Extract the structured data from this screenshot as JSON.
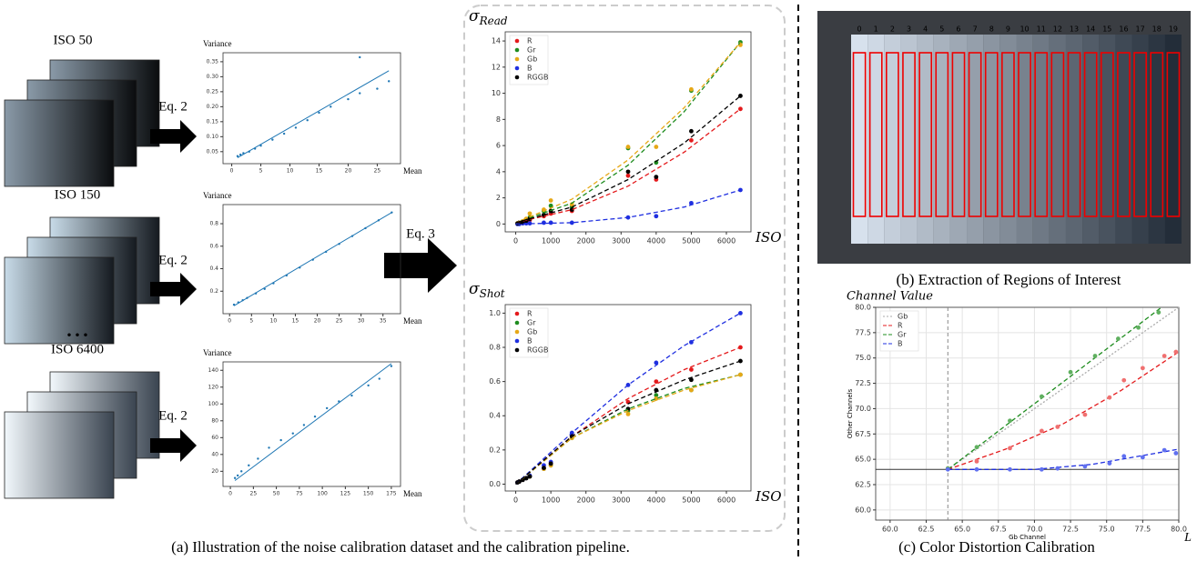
{
  "panel_a": {
    "caption": "(a) Illustration of the noise calibration dataset and the calibration pipeline.",
    "iso_labels": [
      "ISO 50",
      "ISO 150",
      "ISO 6400"
    ],
    "ellipsis": "• • •",
    "eq2": "Eq. 2",
    "eq3": "Eq. 3"
  },
  "panel_b": {
    "caption": "(b) Extraction of Regions of Interest",
    "patch_labels": [
      "0",
      "1",
      "2",
      "3",
      "4",
      "5",
      "6",
      "7",
      "8",
      "9",
      "10",
      "11",
      "12",
      "13",
      "14",
      "15",
      "16",
      "17",
      "18",
      "19"
    ]
  },
  "panel_c": {
    "caption": "(c) Color Distortion Calibration",
    "corner_label": "L"
  },
  "chart_data": [
    {
      "type": "scatter",
      "y_label": "Variance",
      "x_label": "Mean",
      "xlim": [
        -1.5,
        29
      ],
      "ylim": [
        0.01,
        0.38
      ],
      "xticks": [
        0,
        5,
        10,
        15,
        20,
        25
      ],
      "yticks": [
        0.05,
        {
          "value": 0.1,
          "label": "0.10"
        },
        0.15,
        {
          "value": 0.2,
          "label": "0.20"
        },
        0.25,
        {
          "value": 0.3,
          "label": "0.30"
        },
        0.35
      ],
      "series": [
        {
          "mode": "markers",
          "color": "#1f77b4",
          "x": [
            1,
            1.5,
            2,
            3,
            4,
            5,
            7,
            9,
            11,
            13,
            15,
            17,
            20,
            22,
            22,
            25,
            27
          ],
          "values": [
            0.035,
            0.04,
            0.045,
            0.05,
            0.06,
            0.07,
            0.09,
            0.11,
            0.13,
            0.155,
            0.18,
            0.2,
            0.225,
            0.245,
            0.365,
            0.26,
            0.285
          ]
        },
        {
          "mode": "line",
          "color": "#1f77b4",
          "x": [
            1,
            27
          ],
          "values": [
            0.03,
            0.32
          ]
        }
      ]
    },
    {
      "type": "scatter",
      "y_label": "Variance",
      "x_label": "Mean",
      "xlim": [
        -1.5,
        39
      ],
      "ylim": [
        0,
        0.97
      ],
      "xticks": [
        0,
        5,
        10,
        15,
        20,
        25,
        30,
        35
      ],
      "yticks": [
        0.2,
        0.4,
        0.6,
        0.8
      ],
      "series": [
        {
          "mode": "markers",
          "color": "#1f77b4",
          "x": [
            1,
            2,
            3,
            4,
            6,
            8,
            10,
            13,
            16,
            19,
            22,
            25,
            28,
            31,
            34,
            37
          ],
          "values": [
            0.08,
            0.1,
            0.12,
            0.14,
            0.18,
            0.22,
            0.27,
            0.34,
            0.41,
            0.48,
            0.55,
            0.62,
            0.69,
            0.76,
            0.83,
            0.9
          ]
        },
        {
          "mode": "line",
          "color": "#1f77b4",
          "x": [
            1,
            37
          ],
          "values": [
            0.07,
            0.9
          ]
        }
      ]
    },
    {
      "type": "scatter",
      "y_label": "Variance",
      "x_label": "Mean",
      "xlim": [
        -8,
        185
      ],
      "ylim": [
        2,
        150
      ],
      "xticks": [
        0,
        25,
        50,
        75,
        100,
        125,
        150,
        175
      ],
      "yticks": [
        20,
        40,
        60,
        80,
        100,
        120,
        140
      ],
      "series": [
        {
          "mode": "markers",
          "color": "#1f77b4",
          "x": [
            5,
            8,
            12,
            20,
            30,
            42,
            55,
            68,
            80,
            92,
            105,
            118,
            132,
            150,
            162,
            175
          ],
          "values": [
            12,
            15,
            20,
            27,
            35,
            48,
            57,
            65,
            75,
            85,
            95,
            103,
            110,
            122,
            130,
            145
          ]
        },
        {
          "mode": "line",
          "color": "#1f77b4",
          "x": [
            5,
            175
          ],
          "values": [
            9,
            148
          ]
        }
      ]
    },
    {
      "type": "scatter",
      "title": {
        "symbol": "σ",
        "subscript": "Read"
      },
      "x_label": "ISO",
      "legend": "upper left",
      "xlim": [
        -300,
        6700
      ],
      "ylim": [
        -0.6,
        14.7
      ],
      "xticks": [
        0,
        1000,
        2000,
        3000,
        4000,
        5000,
        6000
      ],
      "yticks": [
        0,
        2,
        4,
        6,
        8,
        10,
        12,
        14
      ],
      "series": [
        {
          "name": "R",
          "mode": "markers",
          "color": "#e41a1c",
          "x": [
            50,
            100,
            200,
            300,
            400,
            800,
            1000,
            1600,
            3200,
            4000,
            5000,
            6400
          ],
          "values": [
            0.05,
            0.1,
            0.15,
            0.2,
            0.3,
            0.6,
            0.8,
            1.0,
            3.7,
            3.4,
            6.4,
            8.8
          ]
        },
        {
          "name": "Gr",
          "mode": "markers",
          "color": "#1e8c1e",
          "x": [
            50,
            100,
            200,
            300,
            400,
            800,
            1000,
            1600,
            3200,
            4000,
            5000,
            6400
          ],
          "values": [
            0.05,
            0.1,
            0.2,
            0.3,
            0.5,
            1.0,
            1.4,
            1.3,
            5.8,
            4.7,
            10.2,
            13.9
          ]
        },
        {
          "name": "Gb",
          "mode": "markers",
          "color": "#e6a817",
          "x": [
            50,
            100,
            200,
            300,
            400,
            800,
            1000,
            1600,
            3200,
            4000,
            5000,
            6400
          ],
          "values": [
            0.05,
            0.1,
            0.2,
            0.4,
            0.8,
            1.1,
            1.8,
            1.5,
            5.9,
            5.9,
            10.3,
            13.7
          ]
        },
        {
          "name": "B",
          "mode": "markers",
          "color": "#1f2fe0",
          "x": [
            50,
            100,
            200,
            300,
            400,
            800,
            1000,
            1600,
            3200,
            4000,
            5000,
            6400
          ],
          "values": [
            0,
            0,
            0.05,
            0.05,
            0.05,
            0.1,
            0.1,
            0.1,
            0.5,
            0.6,
            1.6,
            2.6
          ]
        },
        {
          "name": "RGGB",
          "mode": "markers",
          "color": "#000000",
          "x": [
            50,
            100,
            200,
            300,
            400,
            800,
            1000,
            1600,
            3200,
            4000,
            5000,
            6400
          ],
          "values": [
            0.05,
            0.1,
            0.15,
            0.25,
            0.4,
            0.7,
            1.0,
            1.1,
            4.0,
            3.6,
            7.1,
            9.8
          ]
        },
        {
          "mode": "dashed",
          "color": "#e41a1c",
          "x": [
            0,
            1600,
            3200,
            4800,
            6400
          ],
          "values": [
            0.1,
            1.1,
            2.9,
            5.5,
            8.8
          ]
        },
        {
          "mode": "dashed",
          "color": "#1e8c1e",
          "x": [
            0,
            1600,
            3200,
            4800,
            6400
          ],
          "values": [
            0.1,
            1.6,
            4.5,
            8.6,
            13.9
          ]
        },
        {
          "mode": "dashed",
          "color": "#e6a817",
          "x": [
            0,
            1600,
            3200,
            4800,
            6400
          ],
          "values": [
            0.1,
            1.9,
            4.9,
            8.9,
            13.9
          ]
        },
        {
          "mode": "dashed",
          "color": "#1f2fe0",
          "x": [
            0,
            1600,
            3200,
            4800,
            6400
          ],
          "values": [
            0,
            0.1,
            0.5,
            1.3,
            2.6
          ]
        },
        {
          "mode": "dashed",
          "color": "#000000",
          "x": [
            0,
            1600,
            3200,
            4800,
            6400
          ],
          "values": [
            0.1,
            1.3,
            3.4,
            6.2,
            9.8
          ]
        }
      ]
    },
    {
      "type": "scatter",
      "title": {
        "symbol": "σ",
        "subscript": "Shot"
      },
      "x_label": "ISO",
      "legend": "upper left",
      "xlim": [
        -300,
        6700
      ],
      "ylim": [
        -0.04,
        1.05
      ],
      "xticks": [
        0,
        1000,
        2000,
        3000,
        4000,
        5000,
        6000
      ],
      "yticks": [
        {
          "value": 0,
          "label": "0.0"
        },
        0.2,
        0.4,
        0.6,
        0.8,
        {
          "value": 1,
          "label": "1.0"
        }
      ],
      "series": [
        {
          "name": "R",
          "mode": "markers",
          "color": "#e41a1c",
          "x": [
            50,
            100,
            200,
            300,
            400,
            800,
            1000,
            1600,
            3200,
            4000,
            5000,
            6400
          ],
          "values": [
            0.01,
            0.015,
            0.025,
            0.035,
            0.045,
            0.09,
            0.12,
            0.28,
            0.48,
            0.6,
            0.67,
            0.8
          ]
        },
        {
          "name": "Gr",
          "mode": "markers",
          "color": "#1e8c1e",
          "x": [
            50,
            100,
            200,
            300,
            400,
            800,
            1000,
            1600,
            3200,
            4000,
            5000,
            6400
          ],
          "values": [
            0.01,
            0.015,
            0.025,
            0.035,
            0.045,
            0.09,
            0.11,
            0.27,
            0.43,
            0.52,
            0.55,
            0.64
          ]
        },
        {
          "name": "Gb",
          "mode": "markers",
          "color": "#e6a817",
          "x": [
            50,
            100,
            200,
            300,
            400,
            800,
            1000,
            1600,
            3200,
            4000,
            5000,
            6400
          ],
          "values": [
            0.01,
            0.015,
            0.025,
            0.035,
            0.045,
            0.09,
            0.11,
            0.27,
            0.41,
            0.5,
            0.55,
            0.64
          ]
        },
        {
          "name": "B",
          "mode": "markers",
          "color": "#1f2fe0",
          "x": [
            50,
            100,
            200,
            300,
            400,
            800,
            1000,
            1600,
            3200,
            4000,
            5000,
            6400
          ],
          "values": [
            0.01,
            0.015,
            0.025,
            0.035,
            0.05,
            0.11,
            0.13,
            0.3,
            0.58,
            0.71,
            0.83,
            1.0
          ]
        },
        {
          "name": "RGGB",
          "mode": "markers",
          "color": "#000000",
          "x": [
            50,
            100,
            200,
            300,
            400,
            800,
            1000,
            1600,
            3200,
            4000,
            5000,
            6400
          ],
          "values": [
            0.01,
            0.015,
            0.025,
            0.035,
            0.045,
            0.095,
            0.12,
            0.28,
            0.44,
            0.55,
            0.61,
            0.72
          ]
        },
        {
          "mode": "dashed",
          "color": "#e41a1c",
          "x": [
            0,
            1600,
            3200,
            4800,
            6400
          ],
          "values": [
            0,
            0.28,
            0.5,
            0.67,
            0.8
          ]
        },
        {
          "mode": "dashed",
          "color": "#1e8c1e",
          "x": [
            0,
            1600,
            3200,
            4800,
            6400
          ],
          "values": [
            0,
            0.27,
            0.44,
            0.56,
            0.64
          ]
        },
        {
          "mode": "dashed",
          "color": "#e6a817",
          "x": [
            0,
            1600,
            3200,
            4800,
            6400
          ],
          "values": [
            0,
            0.27,
            0.43,
            0.55,
            0.64
          ]
        },
        {
          "mode": "dashed",
          "color": "#1f2fe0",
          "x": [
            0,
            1600,
            3200,
            4800,
            6400
          ],
          "values": [
            0,
            0.3,
            0.58,
            0.81,
            1.0
          ]
        },
        {
          "mode": "dashed",
          "color": "#000000",
          "x": [
            0,
            1600,
            3200,
            4800,
            6400
          ],
          "values": [
            0,
            0.28,
            0.47,
            0.61,
            0.72
          ]
        }
      ]
    },
    {
      "type": "scatter",
      "title_text": "Channel Value",
      "y_label_rotated": "Other Channels",
      "x_label_below": "Gb Channel",
      "legend": "upper left",
      "grid": true,
      "hline": 64,
      "vline": 64,
      "xlim": [
        59,
        80
      ],
      "ylim": [
        59,
        80
      ],
      "xticks": [
        {
          "value": 60,
          "label": "60.0"
        },
        62.5,
        {
          "value": 65,
          "label": "65.0"
        },
        67.5,
        {
          "value": 70,
          "label": "70.0"
        },
        72.5,
        {
          "value": 75,
          "label": "75.0"
        },
        77.5,
        {
          "value": 80,
          "label": "80.0"
        }
      ],
      "yticks": [
        {
          "value": 60,
          "label": "60.0"
        },
        62.5,
        {
          "value": 65,
          "label": "65.0"
        },
        67.5,
        {
          "value": 70,
          "label": "70.0"
        },
        72.5,
        {
          "value": 75,
          "label": "75.0"
        },
        77.5,
        {
          "value": 80,
          "label": "80.0"
        }
      ],
      "series": [
        {
          "name": "Gb",
          "mode": "dotted",
          "color": "#aaaaaa",
          "x": [
            64,
            80
          ],
          "values": [
            64,
            80
          ]
        },
        {
          "name": "R",
          "mode": "dashed",
          "color": "#e41a1c",
          "x": [
            64,
            68,
            72,
            76,
            80
          ],
          "values": [
            64,
            66,
            68.5,
            71.8,
            75.6
          ]
        },
        {
          "name": "Gr",
          "mode": "dashed",
          "color": "#1e8c1e",
          "x": [
            64,
            78.8
          ],
          "values": [
            64,
            80
          ]
        },
        {
          "name": "B",
          "mode": "dashed",
          "color": "#1f2fe0",
          "x": [
            64,
            70,
            74,
            78,
            80
          ],
          "values": [
            64,
            64,
            64.5,
            65.5,
            66
          ]
        },
        {
          "mode": "markers",
          "color": "#f07070",
          "x": [
            64,
            66,
            68.3,
            70.5,
            71.6,
            73.5,
            75.2,
            76.2,
            77.5,
            79,
            79.8
          ],
          "values": [
            64.1,
            64.8,
            66.1,
            67.8,
            68.2,
            69.4,
            71.1,
            72.8,
            74,
            75.2,
            75.6
          ]
        },
        {
          "mode": "markers",
          "color": "#60b060",
          "x": [
            64,
            66,
            68.3,
            70.5,
            72.5,
            74.2,
            75.8,
            77.2,
            78.6
          ],
          "values": [
            64.1,
            66.2,
            68.8,
            71.2,
            73.6,
            75.2,
            76.9,
            78,
            79.5
          ]
        },
        {
          "mode": "markers",
          "color": "#6070f0",
          "x": [
            64,
            66,
            68.3,
            70.5,
            71.6,
            73.5,
            75.2,
            76.2,
            77.5,
            79,
            79.8
          ],
          "values": [
            64,
            64,
            64,
            64,
            64.1,
            64.3,
            64.6,
            65.3,
            65.2,
            65.9,
            65.6
          ]
        }
      ]
    }
  ]
}
